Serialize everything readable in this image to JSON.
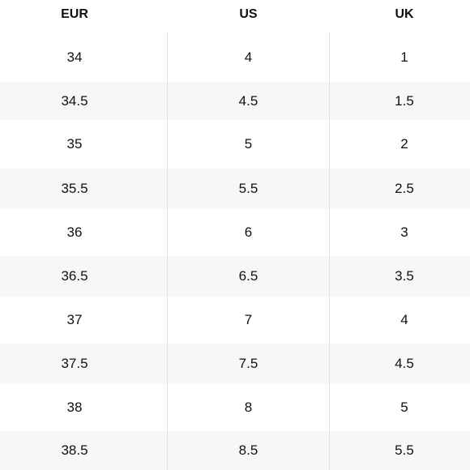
{
  "table": {
    "headers": [
      "EUR",
      "US",
      "UK"
    ],
    "rows": [
      [
        "34",
        "4",
        "1"
      ],
      [
        "34.5",
        "4.5",
        "1.5"
      ],
      [
        "35",
        "5",
        "2"
      ],
      [
        "35.5",
        "5.5",
        "2.5"
      ],
      [
        "36",
        "6",
        "3"
      ],
      [
        "36.5",
        "6.5",
        "3.5"
      ],
      [
        "37",
        "7",
        "4"
      ],
      [
        "37.5",
        "7.5",
        "4.5"
      ],
      [
        "38",
        "8",
        "5"
      ],
      [
        "38.5",
        "8.5",
        "5.5"
      ]
    ]
  }
}
